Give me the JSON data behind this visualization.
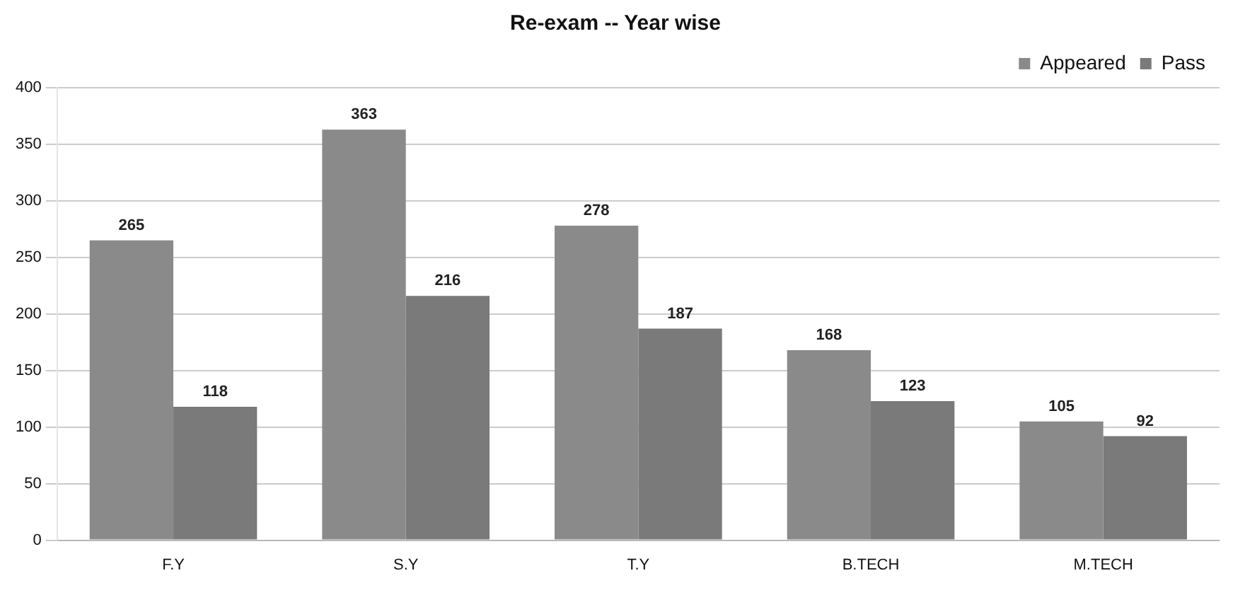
{
  "chart_data": {
    "type": "bar",
    "title": "Re-exam -- Year wise",
    "categories": [
      "F.Y",
      "S.Y",
      "T.Y",
      "B.TECH",
      "M.TECH"
    ],
    "series": [
      {
        "name": "Appeared",
        "color": "#8a8a8a",
        "values": [
          265,
          363,
          278,
          168,
          105
        ]
      },
      {
        "name": "Pass",
        "color": "#7a7a7a",
        "values": [
          118,
          216,
          187,
          123,
          92
        ]
      }
    ],
    "ylim": [
      0,
      400
    ],
    "yticks": [
      0,
      50,
      100,
      150,
      200,
      250,
      300,
      350,
      400
    ],
    "grid": "y",
    "legend": "top right",
    "data_labels": true
  }
}
